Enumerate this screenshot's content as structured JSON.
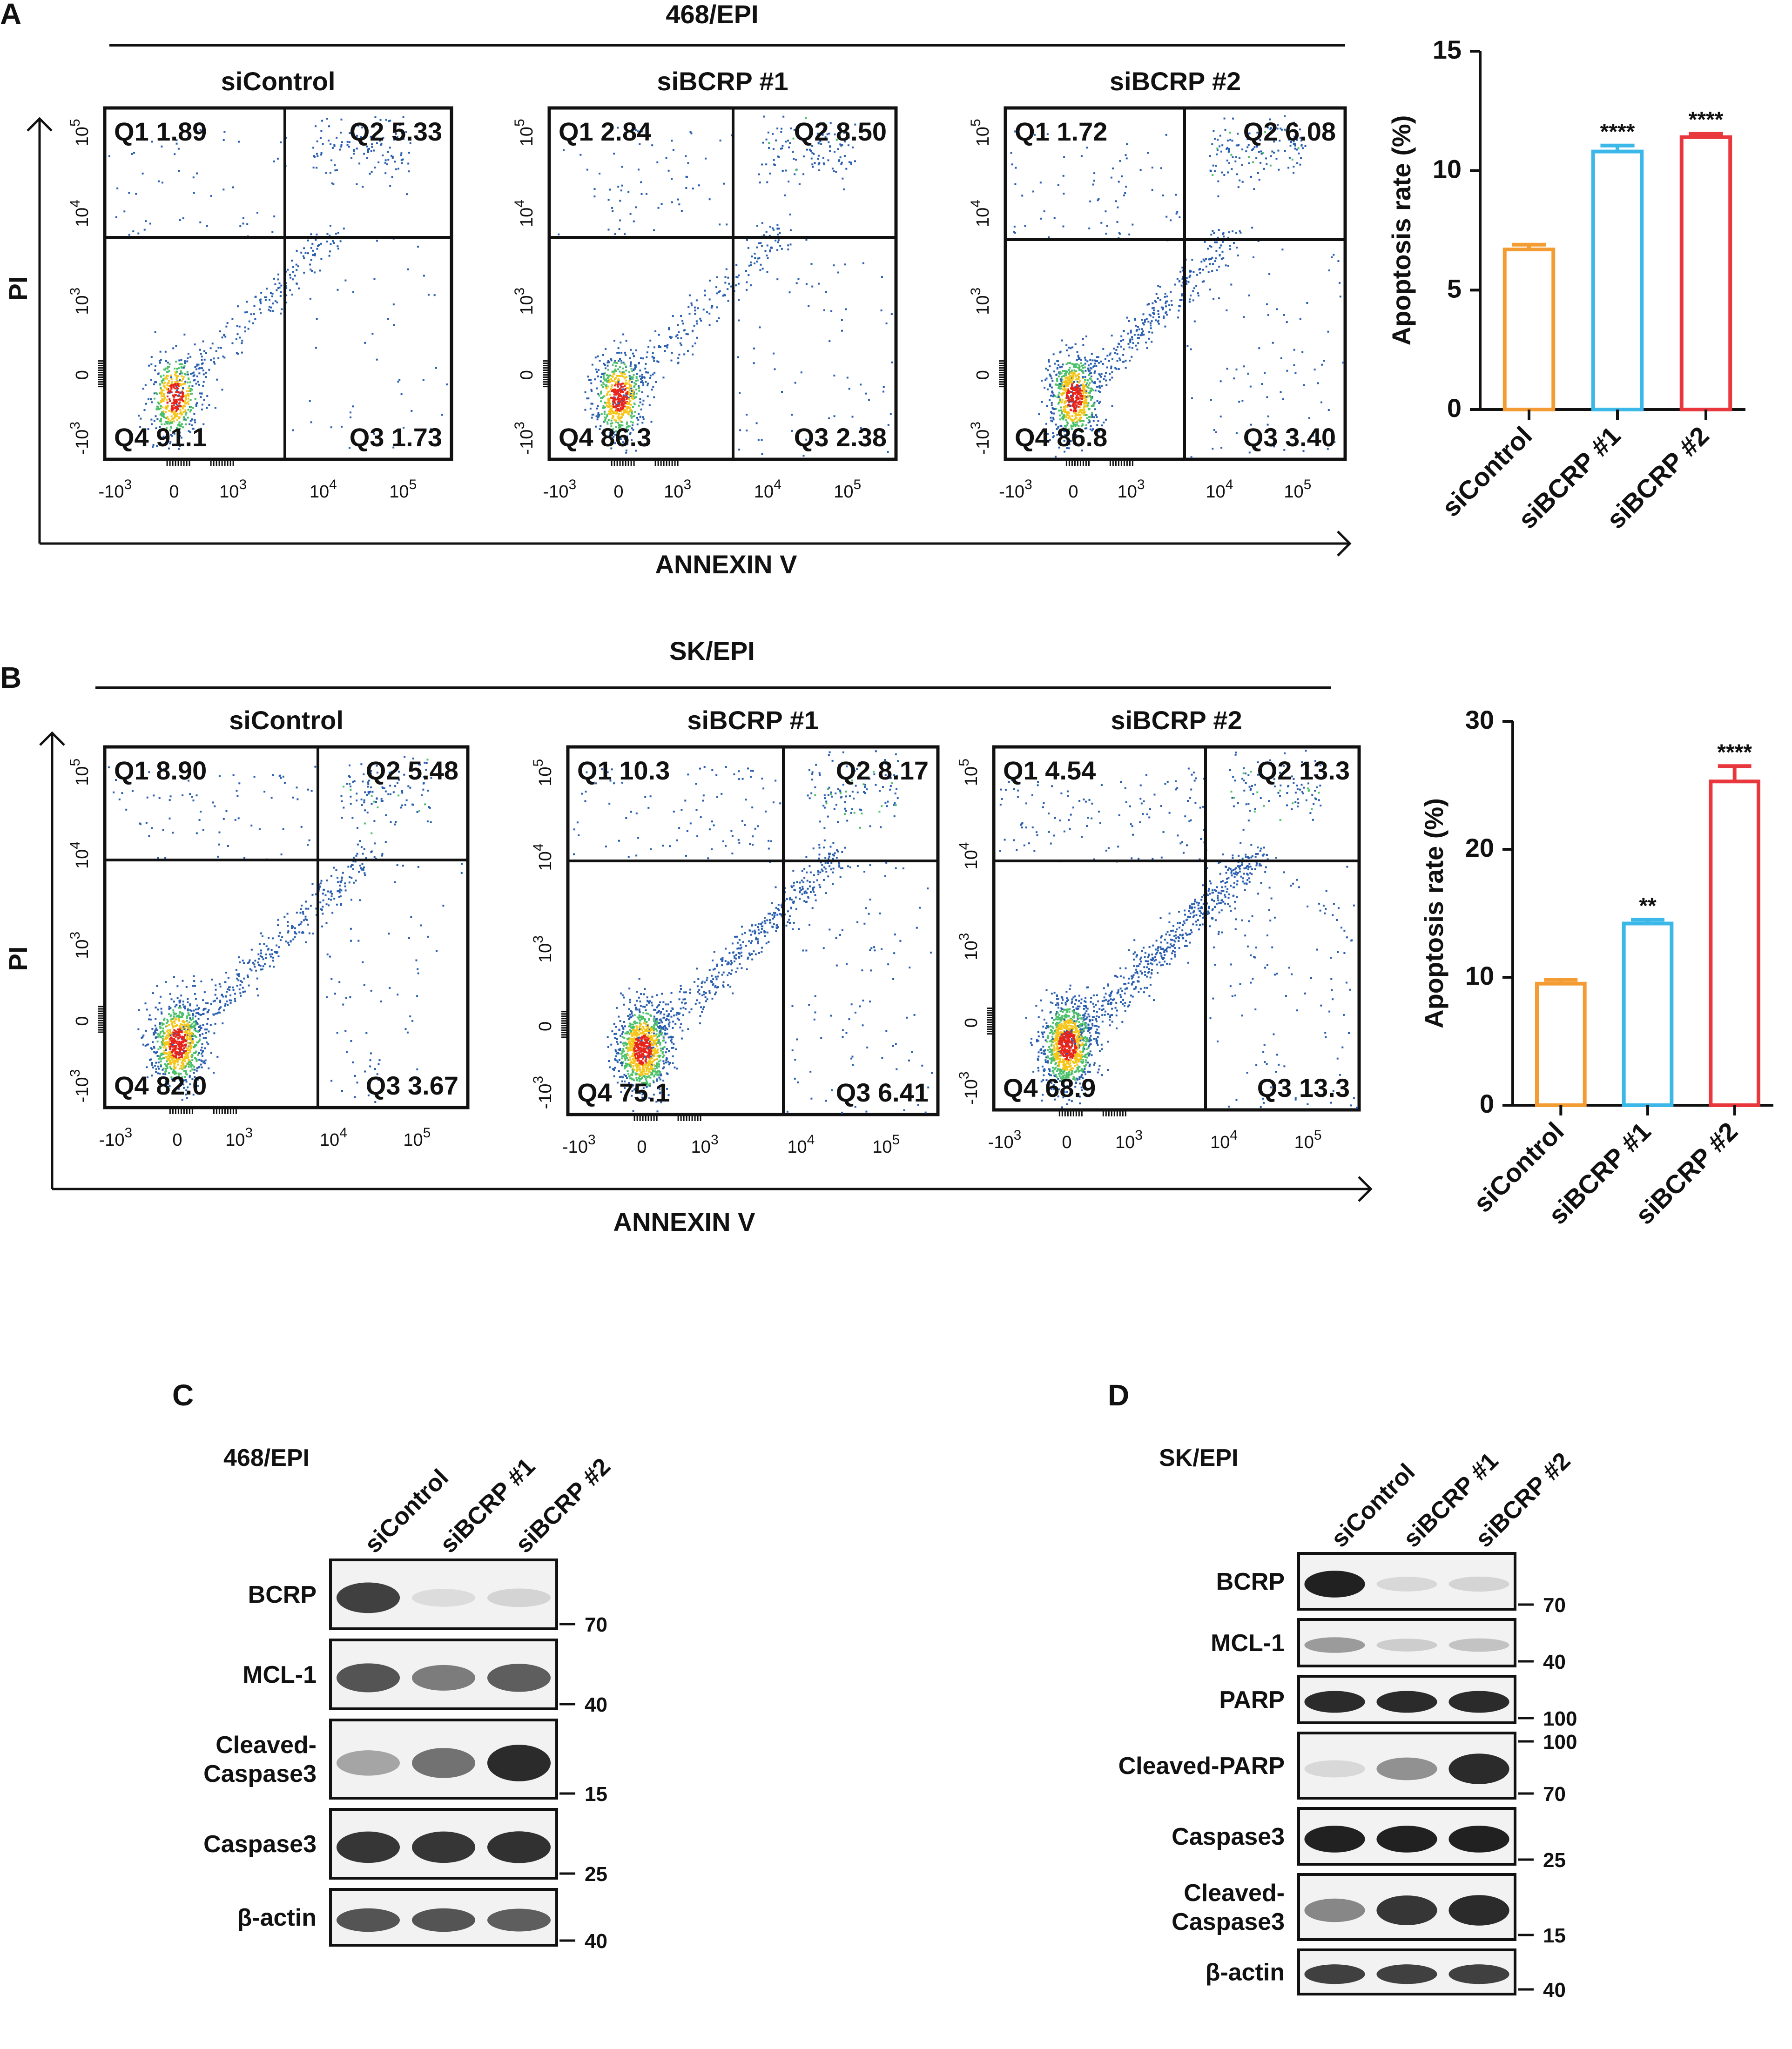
{
  "figure": {
    "panels": [
      "A",
      "B",
      "C",
      "D"
    ]
  },
  "chart_data": [
    {
      "type": "scatter",
      "panel": "A",
      "cell_line": "468/EPI",
      "x_axis_label": "ANNEXIN V",
      "y_axis_label": "PI",
      "x_ticks": [
        "-10",
        "0",
        "10",
        "10",
        "10"
      ],
      "x_tick_exps": [
        "3",
        "",
        "3",
        "4",
        "5"
      ],
      "y_ticks": [
        "-10",
        "0",
        "10",
        "10",
        "10"
      ],
      "y_tick_exps": [
        "3",
        "",
        "3",
        "4",
        "5"
      ],
      "plots": [
        {
          "title": "siControl",
          "quadrants": {
            "Q1": "Q1 1.89",
            "Q2": "Q2 5.33",
            "Q3": "Q3 1.73",
            "Q4": "Q4 91.1"
          }
        },
        {
          "title": "siBCRP #1",
          "quadrants": {
            "Q1": "Q1 2.84",
            "Q2": "Q2 8.50",
            "Q3": "Q3 2.38",
            "Q4": "Q4 86.3"
          }
        },
        {
          "title": "siBCRP #2",
          "quadrants": {
            "Q1": "Q1 1.72",
            "Q2": "Q2 6.08",
            "Q3": "Q3 3.40",
            "Q4": "Q4 86.8"
          }
        }
      ]
    },
    {
      "type": "bar",
      "panel": "A",
      "categories": [
        "siControl",
        "siBCRP #1",
        "siBCRP #2"
      ],
      "values": [
        6.7,
        10.8,
        11.4
      ],
      "errors": [
        0.2,
        0.25,
        0.15
      ],
      "significance": [
        "",
        "****",
        "****"
      ],
      "colors": [
        "#f39c34",
        "#3cb8e8",
        "#e8383d"
      ],
      "ylabel": "Apoptosis rate (%)",
      "ylim": [
        0,
        15
      ],
      "yticks": [
        "0",
        "5",
        "10",
        "15"
      ]
    },
    {
      "type": "scatter",
      "panel": "B",
      "cell_line": "SK/EPI",
      "x_axis_label": "ANNEXIN V",
      "y_axis_label": "PI",
      "x_ticks": [
        "-10",
        "0",
        "10",
        "10",
        "10"
      ],
      "x_tick_exps": [
        "3",
        "",
        "3",
        "4",
        "5"
      ],
      "y_ticks": [
        "-10",
        "0",
        "10",
        "10",
        "10"
      ],
      "y_tick_exps": [
        "3",
        "",
        "3",
        "4",
        "5"
      ],
      "plots": [
        {
          "title": "siControl",
          "quadrants": {
            "Q1": "Q1 8.90",
            "Q2": "Q2 5.48",
            "Q3": "Q3 3.67",
            "Q4": "Q4 82.0"
          }
        },
        {
          "title": "siBCRP #1",
          "quadrants": {
            "Q1": "Q1 10.3",
            "Q2": "Q2 8.17",
            "Q3": "Q3 6.41",
            "Q4": "Q4 75.1"
          }
        },
        {
          "title": "siBCRP #2",
          "quadrants": {
            "Q1": "Q1 4.54",
            "Q2": "Q2 13.3",
            "Q3": "Q3 13.3",
            "Q4": "Q4 68.9"
          }
        }
      ]
    },
    {
      "type": "bar",
      "panel": "B",
      "categories": [
        "siControl",
        "siBCRP #1",
        "siBCRP #2"
      ],
      "values": [
        9.5,
        14.2,
        25.3
      ],
      "errors": [
        0.3,
        0.3,
        1.2
      ],
      "significance": [
        "",
        "**",
        "****"
      ],
      "colors": [
        "#f39c34",
        "#3cb8e8",
        "#e8383d"
      ],
      "ylabel": "Apoptosis rate (%)",
      "ylim": [
        0,
        30
      ],
      "yticks": [
        "0",
        "10",
        "20",
        "30"
      ]
    }
  ],
  "western_c": {
    "panel": "C",
    "cell_line": "468/EPI",
    "lanes": [
      "siControl",
      "siBCRP #1",
      "siBCRP #2"
    ],
    "blots": [
      {
        "label": "BCRP",
        "mw": [
          "70"
        ],
        "intensity": [
          0.85,
          0.08,
          0.12
        ]
      },
      {
        "label": "MCL-1",
        "mw": [
          "40"
        ],
        "intensity": [
          0.75,
          0.55,
          0.7
        ]
      },
      {
        "label": "Cleaved-\nCaspase3",
        "label_lines": [
          "Cleaved-",
          "Caspase3"
        ],
        "mw": [
          "15"
        ],
        "intensity": [
          0.35,
          0.6,
          0.95
        ]
      },
      {
        "label": "Caspase3",
        "mw": [
          "25"
        ],
        "intensity": [
          0.9,
          0.9,
          0.92
        ]
      },
      {
        "label": "β-actin",
        "mw": [
          "40"
        ],
        "intensity": [
          0.75,
          0.75,
          0.7
        ]
      }
    ]
  },
  "western_d": {
    "panel": "D",
    "cell_line": "SK/EPI",
    "lanes": [
      "siControl",
      "siBCRP #1",
      "siBCRP #2"
    ],
    "blots": [
      {
        "label": "BCRP",
        "mw": [
          "70"
        ],
        "intensity": [
          1.0,
          0.1,
          0.12
        ]
      },
      {
        "label": "MCL-1",
        "mw": [
          "40"
        ],
        "intensity": [
          0.4,
          0.15,
          0.2
        ]
      },
      {
        "label": "PARP",
        "mw": [
          "100"
        ],
        "intensity": [
          0.95,
          0.95,
          0.95
        ]
      },
      {
        "label": "Cleaved-PARP",
        "mw": [
          "100",
          "70"
        ],
        "intensity": [
          0.1,
          0.45,
          0.95
        ]
      },
      {
        "label": "Caspase3",
        "mw": [
          "25"
        ],
        "intensity": [
          1.0,
          1.0,
          1.0
        ]
      },
      {
        "label": "Cleaved-\nCaspase3",
        "label_lines": [
          "Cleaved-",
          "Caspase3"
        ],
        "mw": [
          "15"
        ],
        "intensity": [
          0.5,
          0.9,
          0.95
        ]
      },
      {
        "label": "β-actin",
        "mw": [
          "40"
        ],
        "intensity": [
          0.85,
          0.85,
          0.85
        ]
      }
    ]
  }
}
